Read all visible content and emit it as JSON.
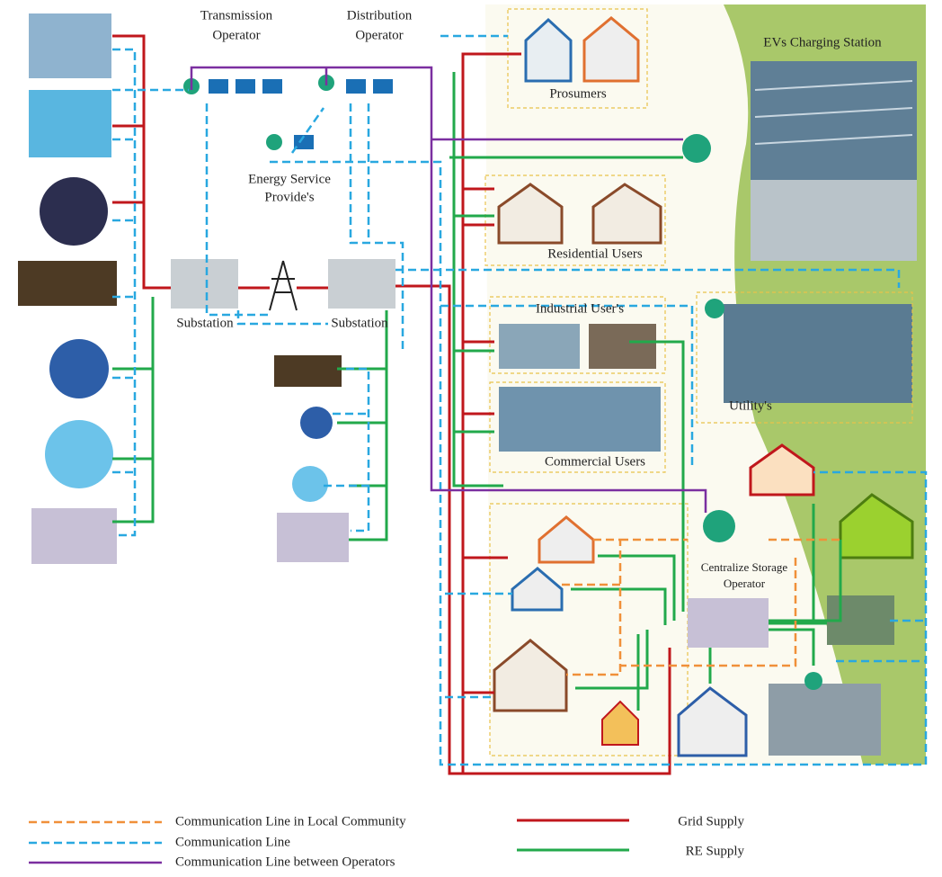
{
  "operators": {
    "transmission": [
      "Transmission",
      "Operator"
    ],
    "distribution": [
      "Distribution",
      "Operator"
    ],
    "energy_service": [
      "Energy Service",
      "Provide's"
    ]
  },
  "substations": [
    "Substation",
    "Substation"
  ],
  "consumers": {
    "prosumers": "Prosumers",
    "ev_station": "EVs Charging Station",
    "residential": "Residential Users",
    "industrial": "Industrial User's",
    "commercial": "Commercial Users",
    "utility": "Utility's",
    "storage": [
      "Centralize Storage",
      "Operator"
    ]
  },
  "legend": [
    "Communication Line in Local Community",
    "Communication Line",
    "Communication Line between Operators",
    "Grid Supply",
    "RE Supply"
  ]
}
